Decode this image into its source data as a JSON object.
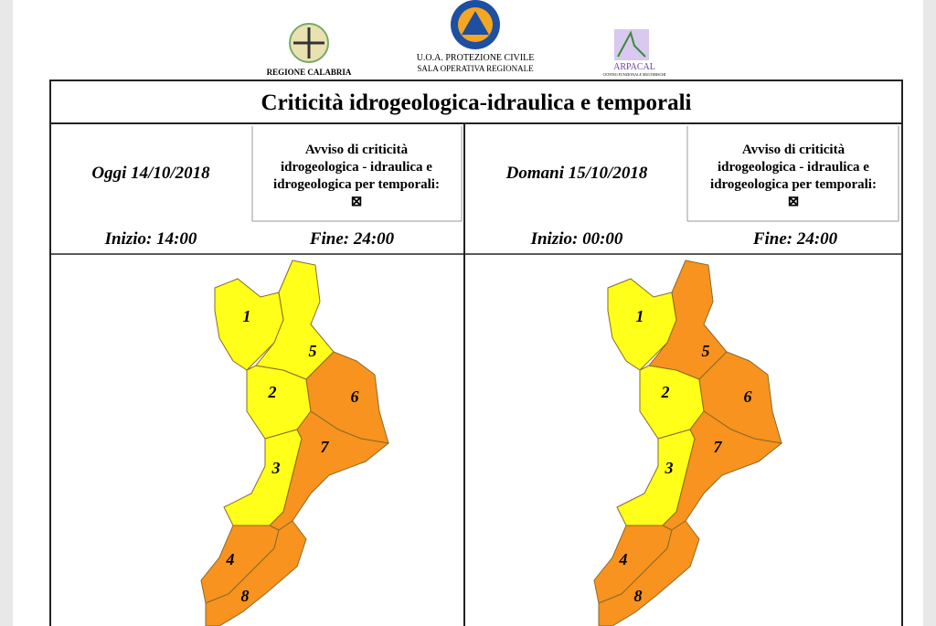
{
  "header": {
    "logos": [
      {
        "text": "REGIONE CALABRIA"
      },
      {
        "lines": [
          "U.O.A. PROTEZIONE CIVILE",
          "SALA OPERATIVA REGIONALE"
        ]
      },
      {
        "lines": [
          "ARPACAL",
          "CENTRO FUNZIONALE MULTIRISCHI"
        ]
      }
    ]
  },
  "title": "Criticità idrogeologica-idraulica e temporali",
  "panels": [
    {
      "date": "Oggi 14/10/2018",
      "notice": [
        "Avviso di criticità",
        "idrogeologica - idraulica e",
        "idrogeologica per temporali:",
        "⊠"
      ],
      "start": "Inizio: 14:00",
      "end": "Fine: 24:00",
      "zones": [
        {
          "label": "1",
          "color": "#ffff1a"
        },
        {
          "label": "2",
          "color": "#ffff1a"
        },
        {
          "label": "3",
          "color": "#ffff1a"
        },
        {
          "label": "4",
          "color": "#f7931e"
        },
        {
          "label": "5",
          "color": "#ffff1a"
        },
        {
          "label": "6",
          "color": "#f7931e"
        },
        {
          "label": "7",
          "color": "#f7931e"
        },
        {
          "label": "8",
          "color": "#f7931e"
        }
      ]
    },
    {
      "date": "Domani 15/10/2018",
      "notice": [
        "Avviso di criticità",
        "idrogeologica - idraulica e",
        "idrogeologica per temporali:",
        "⊠"
      ],
      "start": "Inizio: 00:00",
      "end": "Fine: 24:00",
      "zones": [
        {
          "label": "1",
          "color": "#ffff1a"
        },
        {
          "label": "2",
          "color": "#ffff1a"
        },
        {
          "label": "3",
          "color": "#ffff1a"
        },
        {
          "label": "4",
          "color": "#f7931e"
        },
        {
          "label": "5",
          "color": "#f7931e"
        },
        {
          "label": "6",
          "color": "#f7931e"
        },
        {
          "label": "7",
          "color": "#f7931e"
        },
        {
          "label": "8",
          "color": "#f7931e"
        }
      ]
    }
  ]
}
